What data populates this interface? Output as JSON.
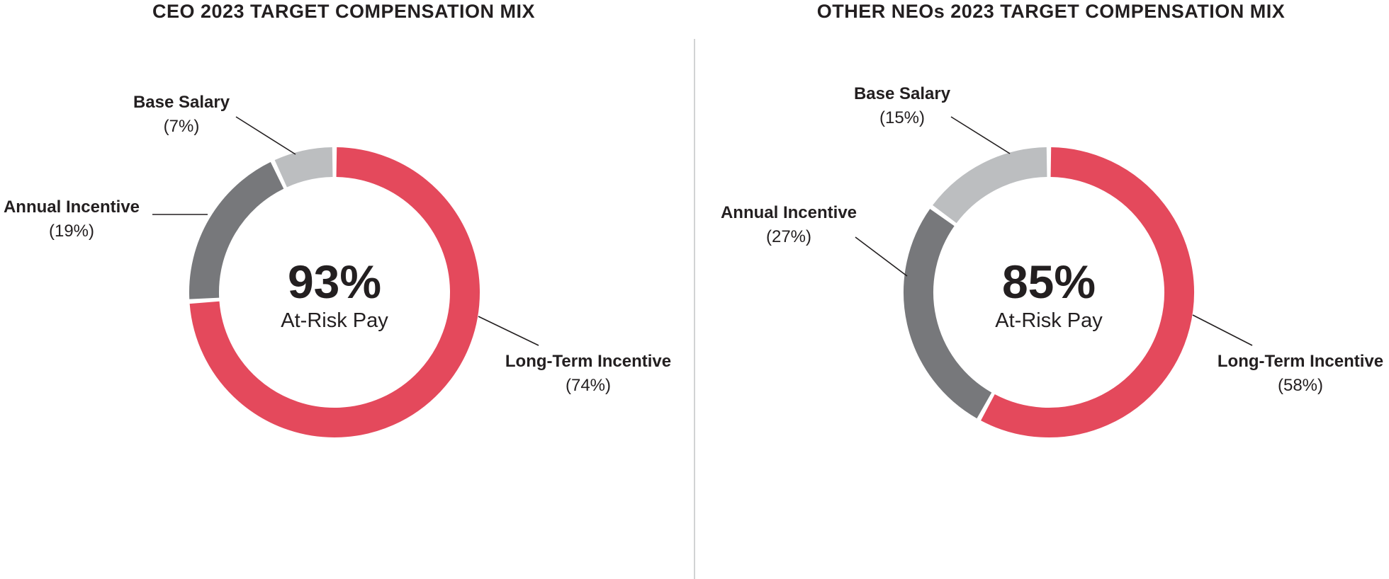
{
  "page": {
    "background": "#FFFFFF",
    "text_color": "#231F20",
    "divider_color": "#D1D3D4",
    "leader_line_color": "#231F20"
  },
  "chart_data": [
    {
      "type": "donut",
      "title": "CEO 2023 TARGET COMPENSATION MIX",
      "center_value": "93%",
      "center_label": "At-Risk Pay",
      "legend_position": "callout-labels",
      "segments": [
        {
          "label": "Long-Term Incentive",
          "pct_text": "(74%)",
          "value": 74,
          "color": "#E4495C"
        },
        {
          "label": "Annual Incentive",
          "pct_text": "(19%)",
          "value": 19,
          "color": "#77787B"
        },
        {
          "label": "Base Salary",
          "pct_text": "(7%)",
          "value": 7,
          "color": "#BCBEC0"
        }
      ]
    },
    {
      "type": "donut",
      "title": "OTHER NEOs 2023 TARGET COMPENSATION MIX",
      "center_value": "85%",
      "center_label": "At-Risk Pay",
      "legend_position": "callout-labels",
      "segments": [
        {
          "label": "Long-Term Incentive",
          "pct_text": "(58%)",
          "value": 58,
          "color": "#E4495C"
        },
        {
          "label": "Annual Incentive",
          "pct_text": "(27%)",
          "value": 27,
          "color": "#77787B"
        },
        {
          "label": "Base Salary",
          "pct_text": "(15%)",
          "value": 15,
          "color": "#BCBEC0"
        }
      ]
    }
  ]
}
